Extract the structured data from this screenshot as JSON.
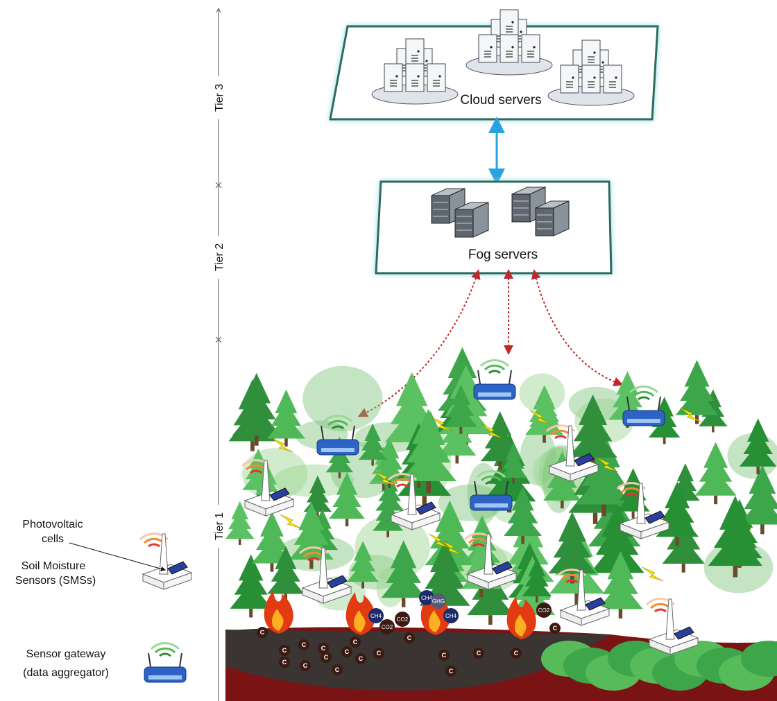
{
  "tiers": [
    "Tier 3",
    "Tier 2",
    "Tier 1"
  ],
  "cloud_label": "Cloud servers",
  "fog_label": "Fog servers",
  "legend": {
    "photovoltaic": [
      "Photovoltaic",
      "cells"
    ],
    "sensor": [
      "Soil Moisture",
      "Sensors (SMSs)"
    ],
    "gateway": [
      "Sensor gateway",
      "(data aggregator)"
    ]
  },
  "emissions": [
    "CH4",
    "GHG",
    "CH4",
    "CH4",
    "CO2",
    "CO2",
    "CO2"
  ],
  "carbon": [
    "C",
    "C",
    "C",
    "C",
    "C",
    "C",
    "C",
    "C",
    "C",
    "C",
    "C",
    "C",
    "C",
    "C",
    "C",
    "C",
    "C",
    "C"
  ]
}
